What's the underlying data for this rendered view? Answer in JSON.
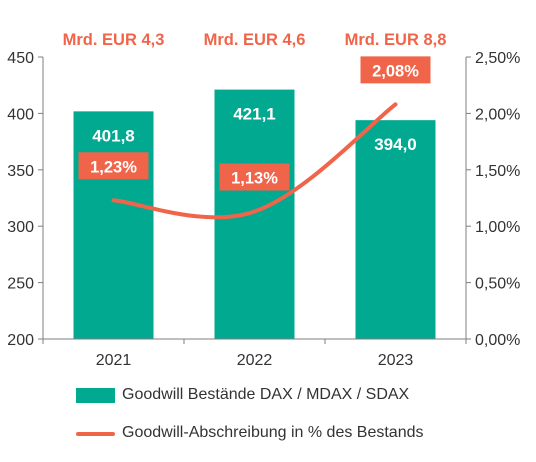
{
  "chart_data": {
    "type": "bar+line",
    "categories": [
      "2021",
      "2022",
      "2023"
    ],
    "series": [
      {
        "name": "Goodwill Bestände DAX / MDAX / SDAX",
        "kind": "bar",
        "axis": "left",
        "values": [
          401.8,
          421.1,
          394.0
        ],
        "labels": [
          "401,8",
          "421,1",
          "394,0"
        ],
        "color": "#00a98f"
      },
      {
        "name": "Goodwill-Abschreibung in % des Bestands",
        "kind": "line",
        "axis": "right",
        "values": [
          1.23,
          1.13,
          2.08
        ],
        "labels": [
          "1,23%",
          "1,13%",
          "2,08%"
        ],
        "color": "#f0654a"
      }
    ],
    "annotations": [
      "Mrd. EUR 4,3",
      "Mrd. EUR 4,6",
      "Mrd. EUR 8,8"
    ],
    "y_left": {
      "min": 200,
      "max": 450,
      "ticks": [
        "200",
        "250",
        "300",
        "350",
        "400",
        "450"
      ]
    },
    "y_right": {
      "min": 0,
      "max": 2.5,
      "ticks": [
        "0,00%",
        "0,50%",
        "1,00%",
        "1,50%",
        "2,00%",
        "2,50%"
      ]
    },
    "grid": false,
    "legend_position": "bottom"
  },
  "legend": {
    "items": [
      {
        "label": "Goodwill Bestände DAX / MDAX / SDAX",
        "color": "#00a98f",
        "shape": "bar"
      },
      {
        "label": "Goodwill-Abschreibung in % des Bestands",
        "color": "#f0654a",
        "shape": "line"
      }
    ]
  }
}
